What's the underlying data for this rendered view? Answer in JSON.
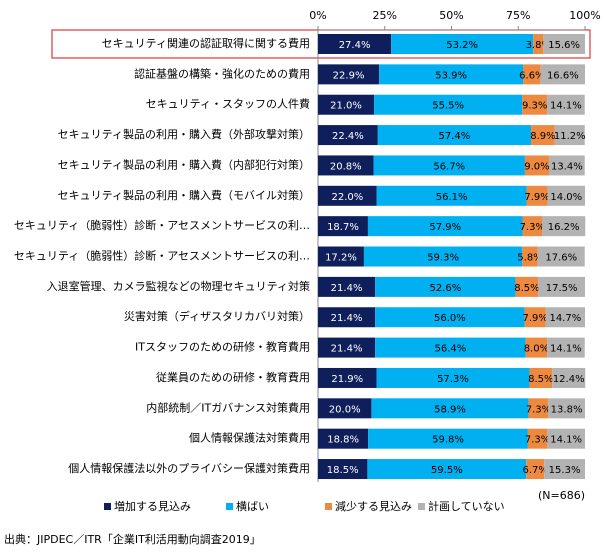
{
  "chart_data": {
    "type": "stacked-bar-horizontal",
    "categories": [
      "セキュリティ関連の認証取得に関する費用",
      "認証基盤の構築・強化のための費用",
      "セキュリティ・スタッフの人件費",
      "セキュリティ製品の利用・購入費（外部攻撃対策）",
      "セキュリティ製品の利用・購入費（内部犯行対策）",
      "セキュリティ製品の利用・購入費（モバイル対策）",
      "セキュリティ（脆弱性）診断・アセスメントサービスの利…",
      "セキュリティ（脆弱性）診断・アセスメントサービスの利…",
      "入退室管理、カメラ監視などの物理セキュリティ対策",
      "災害対策（ディザスタリカバリ対策）",
      "ITスタッフのための研修・教育費用",
      "従業員のための研修・教育費用",
      "内部統制／ITガバナンス対策費用",
      "個人情報保護法対策費用",
      "個人情報保護法以外のプライバシー保護対策費用"
    ],
    "series": [
      {
        "name": "増加する見込み",
        "color": "#0e1f5b",
        "values": [
          27.4,
          22.9,
          21.0,
          22.4,
          20.8,
          22.0,
          18.7,
          17.2,
          21.4,
          21.4,
          21.4,
          21.9,
          20.0,
          18.8,
          18.5
        ],
        "value_labels": [
          "27.4%",
          "22.9%",
          "21.0%",
          "22.4%",
          "20.8%",
          "22.0%",
          "18.7%",
          "17.2%",
          "21.4%",
          "21.4%",
          "21.4%",
          "21.9%",
          "20.0%",
          "18.8%",
          "18.5%"
        ]
      },
      {
        "name": "横ばい",
        "color": "#00b0f0",
        "values": [
          53.2,
          53.9,
          55.5,
          57.4,
          56.7,
          56.1,
          57.9,
          59.3,
          52.6,
          56.0,
          56.4,
          57.3,
          58.9,
          59.8,
          59.5
        ],
        "value_labels": [
          "53.2%",
          "53.9%",
          "55.5%",
          "57.4%",
          "56.7%",
          "56.1%",
          "57.9%",
          "59.3%",
          "52.6%",
          "56.0%",
          "56.4%",
          "57.3%",
          "58.9%",
          "59.8%",
          "59.5%"
        ]
      },
      {
        "name": "減少する見込み",
        "color": "#ed8a3f",
        "values": [
          3.8,
          6.6,
          9.3,
          8.9,
          9.0,
          7.9,
          7.3,
          5.8,
          8.5,
          7.9,
          8.0,
          8.5,
          7.3,
          7.3,
          6.7
        ],
        "value_labels": [
          "3.8%",
          "6.6%",
          "9.3%",
          "8.9%",
          "9.0%",
          "7.9%",
          "7.3%",
          "5.8%",
          "8.5%",
          "7.9%",
          "8.0%",
          "8.5%",
          "7.3%",
          "7.3%",
          "6.7%"
        ]
      },
      {
        "name": "計画していない",
        "color": "#b3b3b3",
        "values": [
          15.6,
          16.6,
          14.1,
          11.2,
          13.4,
          14.0,
          16.2,
          17.6,
          17.5,
          14.7,
          14.1,
          12.4,
          13.8,
          14.1,
          15.3
        ],
        "value_labels": [
          "15.6%",
          "16.6%",
          "14.1%",
          "11.2%",
          "13.4%",
          "14.0%",
          "16.2%",
          "17.6%",
          "17.5%",
          "14.7%",
          "14.1%",
          "12.4%",
          "13.8%",
          "14.1%",
          "15.3%"
        ]
      }
    ],
    "xlim": [
      0,
      100
    ],
    "xticks": [
      {
        "value": 0,
        "label": "0%"
      },
      {
        "value": 25,
        "label": "25%"
      },
      {
        "value": 50,
        "label": "50%"
      },
      {
        "value": 75,
        "label": "75%"
      },
      {
        "value": 100,
        "label": "100%"
      }
    ],
    "grid": false,
    "annotations": [
      "(N=686)",
      "出典：JIPDEC／ITR「企業IT利活用動向調査2019」"
    ]
  }
}
